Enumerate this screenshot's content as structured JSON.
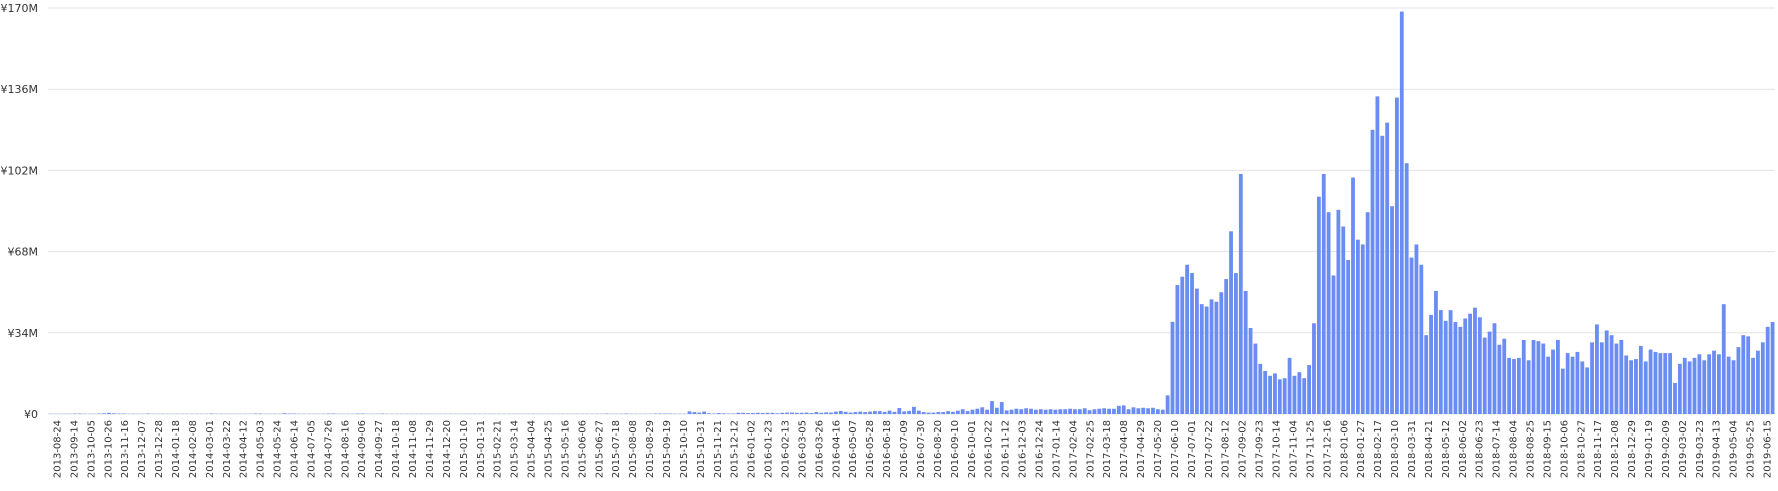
{
  "colors": {
    "bar": "#6b8cf2",
    "grid": "#e3e3e3",
    "text": "#333333"
  },
  "chart_data": {
    "type": "bar",
    "ylim": [
      0,
      170
    ],
    "y_ticks": [
      "¥0",
      "¥34M",
      "¥68M",
      "¥102M",
      "¥136M",
      "¥170M"
    ],
    "grid": true,
    "legend": "none",
    "x_tick_labels": [
      "2013-08-24",
      "2013-09-14",
      "2013-10-05",
      "2013-10-26",
      "2013-11-16",
      "2013-12-07",
      "2013-12-28",
      "2014-01-18",
      "2014-02-08",
      "2014-03-01",
      "2014-03-22",
      "2014-04-12",
      "2014-05-03",
      "2014-05-24",
      "2014-06-14",
      "2014-07-05",
      "2014-07-26",
      "2014-08-16",
      "2014-09-06",
      "2014-09-27",
      "2014-10-18",
      "2014-11-08",
      "2014-11-29",
      "2014-12-20",
      "2015-01-10",
      "2015-01-31",
      "2015-02-21",
      "2015-03-14",
      "2015-04-04",
      "2015-04-25",
      "2015-05-16",
      "2015-06-06",
      "2015-06-27",
      "2015-07-18",
      "2015-08-08",
      "2015-08-29",
      "2015-09-19",
      "2015-10-10",
      "2015-10-31",
      "2015-11-21",
      "2015-12-12",
      "2016-01-02",
      "2016-01-23",
      "2016-02-13",
      "2016-03-05",
      "2016-03-26",
      "2016-04-16",
      "2016-05-07",
      "2016-05-28",
      "2016-06-18",
      "2016-07-09",
      "2016-07-30",
      "2016-08-20",
      "2016-09-10",
      "2016-10-01",
      "2016-10-22",
      "2016-11-12",
      "2016-12-03",
      "2016-12-24",
      "2017-01-14",
      "2017-02-04",
      "2017-02-25",
      "2017-03-18",
      "2017-04-08",
      "2017-04-29",
      "2017-05-20",
      "2017-06-10",
      "2017-07-01",
      "2017-07-22",
      "2017-08-12",
      "2017-09-02",
      "2017-09-23",
      "2017-10-14",
      "2017-11-04",
      "2017-11-25",
      "2017-12-16",
      "2018-01-06",
      "2018-01-27",
      "2018-02-17",
      "2018-03-10",
      "2018-03-31",
      "2018-04-21",
      "2018-05-12",
      "2018-06-02",
      "2018-06-23",
      "2018-07-14",
      "2018-08-04",
      "2018-08-25",
      "2018-09-15",
      "2018-10-06",
      "2018-10-27",
      "2018-11-17",
      "2018-12-08",
      "2018-12-29",
      "2019-01-19",
      "2019-02-09",
      "2019-03-02",
      "2019-03-23",
      "2019-04-13",
      "2019-05-04",
      "2019-05-25",
      "2019-06-15"
    ],
    "values": [
      0.1,
      0.1,
      0.1,
      0.1,
      0.1,
      0.2,
      0.2,
      0.1,
      0.1,
      0.1,
      0.2,
      0.3,
      0.5,
      0.3,
      0.2,
      0.2,
      0.1,
      0.1,
      0.1,
      0.1,
      0.2,
      0.1,
      0.1,
      0.1,
      0.1,
      0.1,
      0.1,
      0.1,
      0.1,
      0.1,
      0.1,
      0.1,
      0.1,
      0.2,
      0.1,
      0.1,
      0.1,
      0.1,
      0.1,
      0.1,
      0.1,
      0.1,
      0.2,
      0.2,
      0.1,
      0.1,
      0.1,
      0.1,
      0.3,
      0.2,
      0.2,
      0.1,
      0.1,
      0.1,
      0.1,
      0.1,
      0.1,
      0.2,
      0.2,
      0.1,
      0.1,
      0.1,
      0.1,
      0.2,
      0.2,
      0.1,
      0.1,
      0.1,
      0.2,
      0.1,
      0.1,
      0.1,
      0.1,
      0.1,
      0.1,
      0.1,
      0.1,
      0.1,
      0.1,
      0.1,
      0.1,
      0.1,
      0.1,
      0.1,
      0.1,
      0.1,
      0.1,
      0.1,
      0.1,
      0.1,
      0.1,
      0.1,
      0.1,
      0.1,
      0.1,
      0.1,
      0.1,
      0.1,
      0.1,
      0.1,
      0.1,
      0.1,
      0.1,
      0.1,
      0.1,
      0.1,
      0.1,
      0.1,
      0.1,
      0.1,
      0.1,
      0.1,
      0.1,
      0.1,
      0.2,
      0.1,
      0.1,
      0.1,
      0.2,
      0.1,
      0.1,
      0.1,
      0.1,
      0.1,
      0.2,
      0.2,
      0.2,
      0.2,
      0.1,
      0.1,
      0.1,
      1.1,
      0.8,
      0.6,
      1.0,
      0.3,
      0.2,
      0.4,
      0.3,
      0.2,
      0.2,
      0.5,
      0.5,
      0.4,
      0.4,
      0.5,
      0.4,
      0.5,
      0.5,
      0.3,
      0.5,
      0.6,
      0.6,
      0.5,
      0.5,
      0.6,
      0.4,
      0.8,
      0.5,
      0.7,
      0.6,
      1.0,
      1.3,
      0.9,
      0.6,
      0.8,
      1.0,
      0.8,
      1.0,
      1.2,
      1.2,
      0.9,
      1.4,
      0.9,
      2.5,
      1.1,
      1.3,
      3.0,
      1.4,
      0.8,
      0.6,
      0.6,
      0.8,
      0.8,
      1.2,
      0.9,
      1.4,
      2.0,
      1.2,
      1.8,
      2.2,
      2.8,
      1.8,
      5.4,
      2.6,
      5.0,
      1.5,
      1.8,
      2.2,
      2.0,
      2.4,
      2.2,
      1.8,
      2.0,
      1.8,
      2.0,
      1.8,
      2.0,
      2.0,
      2.2,
      2.0,
      2.0,
      2.4,
      1.6,
      2.0,
      2.2,
      2.4,
      2.2,
      2.2,
      3.4,
      3.6,
      2.0,
      2.8,
      2.4,
      2.6,
      2.4,
      2.6,
      2.0,
      1.8,
      7.8,
      38.6,
      54.0,
      57.5,
      62.5,
      59.0,
      52.5,
      46.0,
      45.0,
      48.0,
      47.0,
      51.0,
      56.5,
      76.5,
      59.0,
      100.5,
      51.5,
      36.0,
      29.5,
      21.0,
      18.0,
      16.0,
      17.0,
      14.5,
      15.0,
      23.5,
      16.0,
      17.5,
      15.0,
      20.5,
      38.0,
      91.0,
      100.5,
      84.5,
      58.0,
      85.5,
      78.5,
      64.5,
      99.0,
      73.0,
      71.0,
      84.5,
      119.0,
      133.0,
      116.5,
      122.0,
      87.0,
      132.5,
      168.5,
      105.0,
      65.5,
      71.0,
      62.5,
      33.0,
      41.5,
      51.5,
      43.5,
      39.0,
      43.5,
      38.5,
      36.5,
      40.0,
      42.0,
      44.5,
      40.5,
      32.0,
      34.5,
      38.0,
      29.0,
      31.5,
      23.5,
      23.0,
      23.5,
      31.0,
      22.5,
      31.0,
      30.5,
      29.5,
      24.0,
      27.0,
      31.0,
      19.0,
      25.5,
      24.0,
      26.0,
      22.0,
      19.5,
      30.0,
      37.5,
      30.0,
      35.0,
      33.0,
      29.5,
      31.0,
      24.5,
      22.5,
      23.0,
      28.5,
      22.0,
      27.0,
      26.0,
      25.5,
      25.5,
      25.5,
      13.0,
      21.0,
      23.5,
      22.0,
      23.5,
      25.0,
      22.5,
      25.0,
      26.5,
      25.0,
      46.0,
      24.0,
      22.5,
      28.0,
      33.0,
      32.5,
      23.5,
      26.5,
      30.0,
      36.5,
      38.5
    ]
  }
}
